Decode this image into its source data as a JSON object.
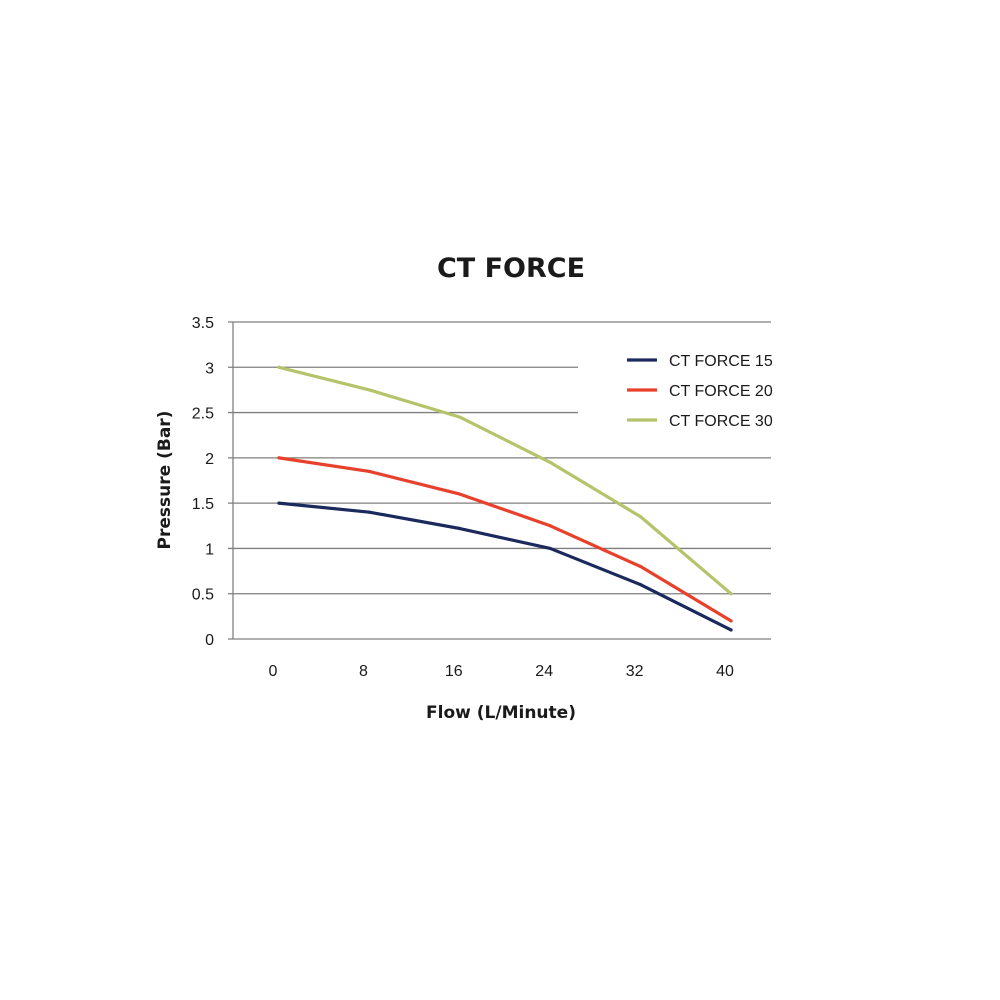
{
  "chart_data": {
    "type": "line",
    "title": "CT FORCE",
    "xlabel": "Flow (L/Minute)",
    "ylabel": "Pressure (Bar)",
    "categories": [
      "0",
      "8",
      "16",
      "24",
      "32",
      "40"
    ],
    "x": [
      0,
      8,
      16,
      24,
      32,
      40
    ],
    "ylim": [
      0,
      3.5
    ],
    "yticks": [
      "0",
      "0.5",
      "1",
      "1.5",
      "2",
      "2.5",
      "3",
      "3.5"
    ],
    "grid": true,
    "legend_position": "top-right",
    "series": [
      {
        "name": "CT FORCE 15",
        "color": "#1b2a5c",
        "values": [
          1.5,
          1.4,
          1.22,
          1.0,
          0.6,
          0.1
        ]
      },
      {
        "name": "CT FORCE 20",
        "color": "#e8402a",
        "values": [
          2.0,
          1.85,
          1.6,
          1.25,
          0.8,
          0.2
        ]
      },
      {
        "name": "CT FORCE 30",
        "color": "#b5c46a",
        "values": [
          3.0,
          2.75,
          2.45,
          1.95,
          1.35,
          0.5
        ]
      }
    ]
  }
}
